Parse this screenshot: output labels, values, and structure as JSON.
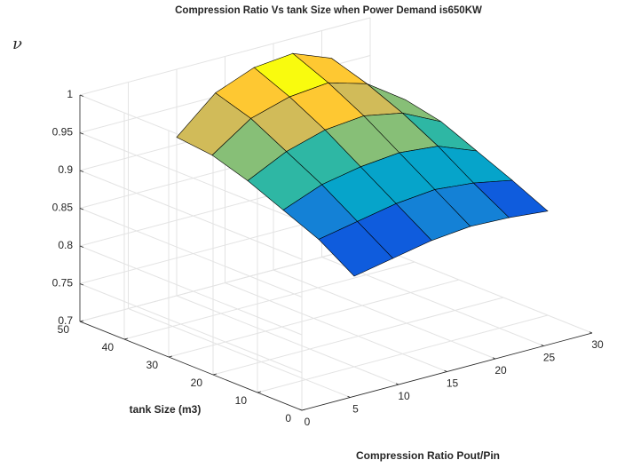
{
  "chart_data": {
    "type": "surface",
    "title": "Compression Ratio Vs tank Size when Power Demand is650KW",
    "xlabel": "Compression Ratio Pout/Pin",
    "ylabel": "tank Size (m3)",
    "zlabel": "ν",
    "x": [
      10,
      14,
      18,
      22,
      26,
      30
    ],
    "y": [
      10,
      18,
      26,
      34,
      42,
      50
    ],
    "z": [
      [
        0.82,
        0.83,
        0.84,
        0.845,
        0.843,
        0.838
      ],
      [
        0.85,
        0.86,
        0.87,
        0.875,
        0.87,
        0.86
      ],
      [
        0.87,
        0.89,
        0.9,
        0.905,
        0.9,
        0.88
      ],
      [
        0.89,
        0.915,
        0.93,
        0.935,
        0.925,
        0.9
      ],
      [
        0.905,
        0.94,
        0.955,
        0.96,
        0.945,
        0.91
      ],
      [
        0.91,
        0.955,
        0.975,
        0.98,
        0.96,
        0.905
      ]
    ],
    "xlim": [
      0,
      30
    ],
    "xticks": [
      0,
      5,
      10,
      15,
      20,
      25,
      30
    ],
    "ylim": [
      0,
      50
    ],
    "yticks": [
      0,
      10,
      20,
      30,
      40,
      50
    ],
    "zlim": [
      0.7,
      1
    ],
    "zticks": [
      0.7,
      0.75,
      0.8,
      0.85,
      0.9,
      0.95,
      1
    ],
    "grid": true,
    "colormap": [
      "#352a87",
      "#0f5cdd",
      "#1481d6",
      "#06a4ca",
      "#2eb7a4",
      "#87bf77",
      "#d1bb59",
      "#fec832",
      "#f9fb0e"
    ],
    "edgecolor": "#000000"
  }
}
